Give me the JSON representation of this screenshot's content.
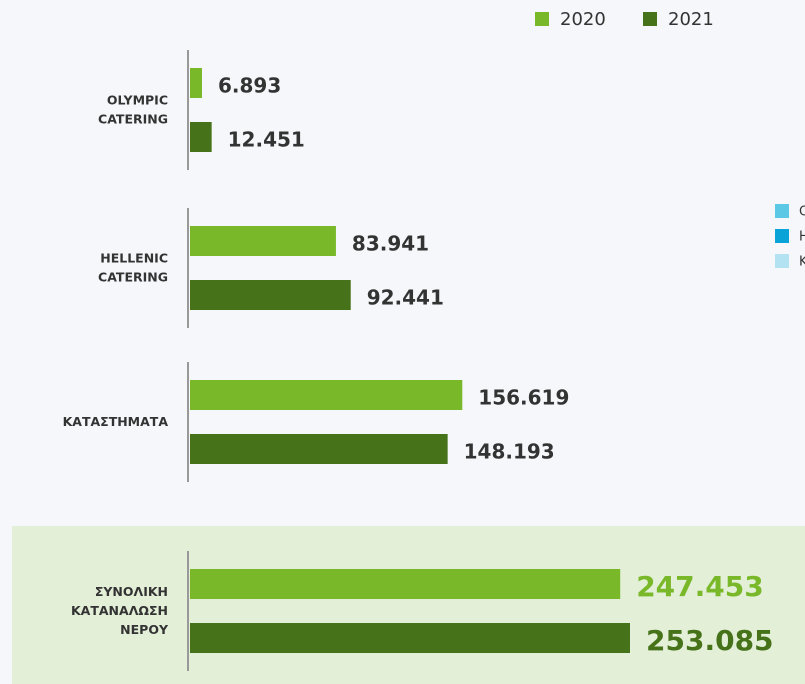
{
  "chart_data": {
    "type": "bar",
    "orientation": "horizontal",
    "categories": [
      [
        "OLYMPIC",
        "CATERING"
      ],
      [
        "HELLENIC",
        "CATERING"
      ],
      [
        "ΚΑΤΑΣΤΗΜΑΤΑ"
      ],
      [
        "ΣΥΝΟΛΙΚΗ",
        "ΚΑΤΑΝΑΛΩΣΗ",
        "ΝΕΡΟΥ"
      ]
    ],
    "series": [
      {
        "name": "2020",
        "color": "#79b829",
        "values": [
          6893,
          83941,
          156619,
          247453
        ],
        "value_labels": [
          "6.893",
          "83.941",
          "156.619",
          "247.453"
        ]
      },
      {
        "name": "2021",
        "color": "#46731a",
        "values": [
          12451,
          92441,
          148193,
          253085
        ],
        "value_labels": [
          "12.451",
          "92.441",
          "148.193",
          "253.085"
        ]
      }
    ],
    "legend": "top-right",
    "partial_legend": [
      {
        "label": "O",
        "color": "#5bc8e6"
      },
      {
        "label": "H",
        "color": "#0aa3d8"
      },
      {
        "label": "K",
        "color": "#b3e3f3"
      }
    ]
  }
}
